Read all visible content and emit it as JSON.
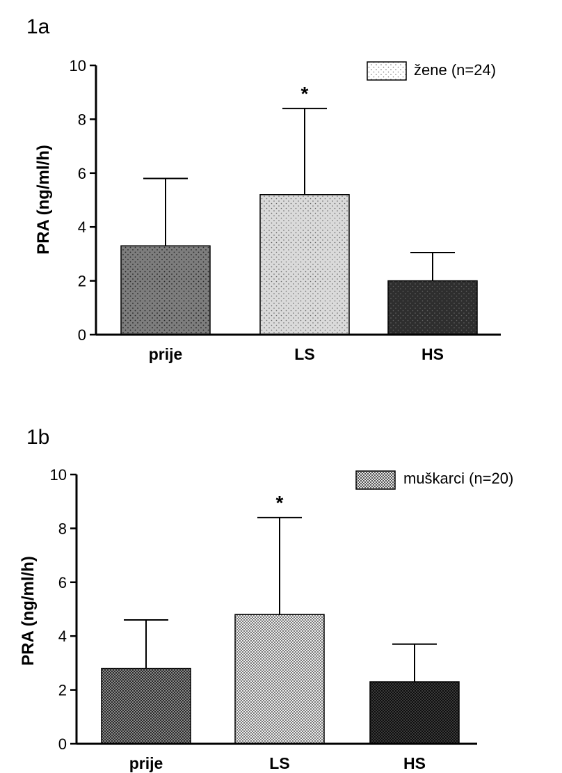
{
  "panels": [
    {
      "label": "1a"
    },
    {
      "label": "1b"
    }
  ],
  "chart_data": [
    {
      "type": "bar",
      "panel": "1a",
      "categories": [
        "prije",
        "LS",
        "HS"
      ],
      "values": [
        3.3,
        5.2,
        2.0
      ],
      "error_upper": [
        5.8,
        8.4,
        3.05
      ],
      "significance": [
        "",
        "*",
        ""
      ],
      "ylabel": "PRA (ng/ml/h)",
      "ylim": [
        0,
        10
      ],
      "yticks": [
        "0",
        "2",
        "4",
        "6",
        "8",
        "10"
      ],
      "legend": "žene (n=24)",
      "legend_position": "top-right",
      "bar_colors": [
        "#7d7d7d",
        "#dadada",
        "#2e2e2e"
      ],
      "pattern": "dots"
    },
    {
      "type": "bar",
      "panel": "1b",
      "categories": [
        "prije",
        "LS",
        "HS"
      ],
      "values": [
        2.8,
        4.8,
        2.3
      ],
      "error_upper": [
        4.6,
        8.4,
        3.7
      ],
      "significance": [
        "",
        "*",
        ""
      ],
      "ylabel": "PRA (ng/ml/h)",
      "ylim": [
        0,
        10
      ],
      "yticks": [
        "0",
        "2",
        "4",
        "6",
        "8",
        "10"
      ],
      "legend": "muškarci (n=20)",
      "legend_position": "top-right",
      "bar_colors": [
        "#5a5a5a",
        "#cfcfcf",
        "#1c1c1c"
      ],
      "pattern": "checker"
    }
  ]
}
